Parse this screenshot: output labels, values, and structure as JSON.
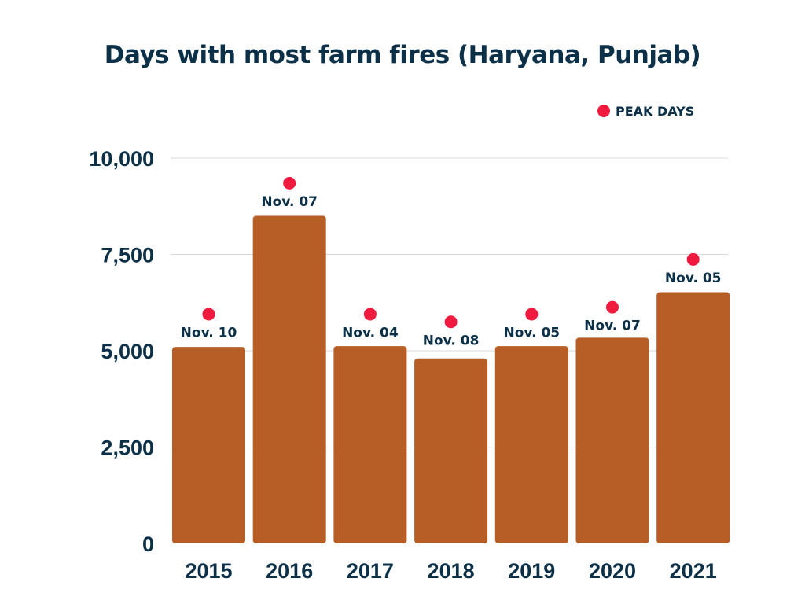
{
  "chart_data": {
    "type": "bar",
    "title": "Days with most farm fires (Haryana, Punjab)",
    "xlabel": "",
    "ylabel": "",
    "categories": [
      "2015",
      "2016",
      "2017",
      "2018",
      "2019",
      "2020",
      "2021"
    ],
    "values": [
      5100,
      8500,
      5120,
      4800,
      5120,
      5340,
      6520
    ],
    "peak_markers": {
      "name": "PEAK DAYS",
      "color": "#f0193e",
      "values": [
        5950,
        9350,
        5950,
        5750,
        5950,
        6130,
        7370
      ],
      "labels": [
        "Nov. 10",
        "Nov. 07",
        "Nov. 04",
        "Nov. 08",
        "Nov. 05",
        "Nov. 07",
        "Nov. 05"
      ]
    },
    "ylim": [
      0,
      10000
    ],
    "yticks": [
      0,
      2500,
      5000,
      7500,
      10000
    ],
    "ytick_labels": [
      "0",
      "2,500",
      "5,000",
      "7,500",
      "10,000"
    ],
    "grid": true,
    "legend": "top-right",
    "bar_color": "#b65e26",
    "text_color": "#0b3047"
  }
}
